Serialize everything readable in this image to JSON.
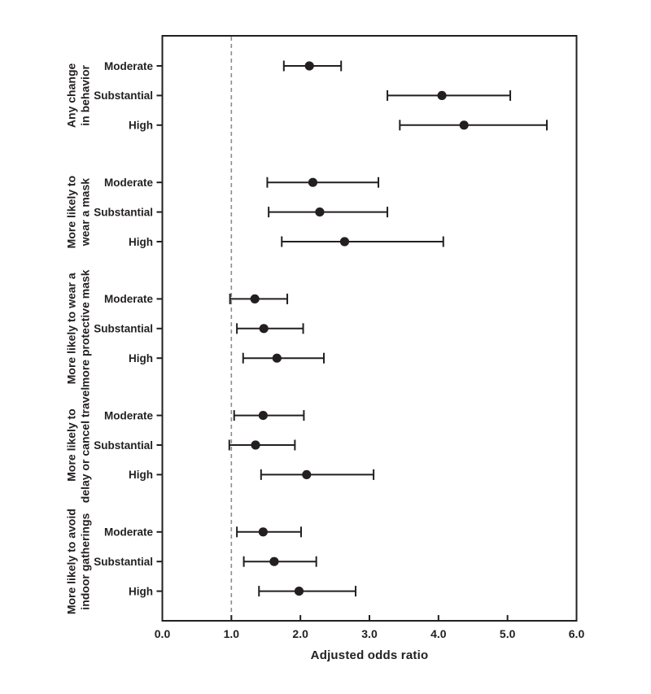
{
  "chart_data": {
    "type": "scatter",
    "subtype": "forest-plot-dot-with-ci",
    "title": "",
    "xlabel": "Adjusted odds ratio",
    "ylabel": "",
    "xlim": [
      0.0,
      6.0
    ],
    "xticks": [
      0,
      1,
      2,
      3,
      4,
      5,
      6
    ],
    "xtick_labels": [
      "0.0",
      "1.0",
      "2.0",
      "3.0",
      "4.0",
      "5.0",
      "6.0"
    ],
    "reference_line_x": 1.0,
    "grid": "off",
    "legend": "none",
    "groups": [
      {
        "label_lines": [
          "Any change",
          "in behavior"
        ],
        "rows": [
          {
            "level": "Moderate",
            "or": 2.13,
            "ci_low": 1.76,
            "ci_high": 2.59
          },
          {
            "level": "Substantial",
            "or": 4.05,
            "ci_low": 3.26,
            "ci_high": 5.04
          },
          {
            "level": "High",
            "or": 4.37,
            "ci_low": 3.44,
            "ci_high": 5.57
          }
        ]
      },
      {
        "label_lines": [
          "More likely to",
          "wear a mask"
        ],
        "rows": [
          {
            "level": "Moderate",
            "or": 2.18,
            "ci_low": 1.52,
            "ci_high": 3.13
          },
          {
            "level": "Substantial",
            "or": 2.28,
            "ci_low": 1.54,
            "ci_high": 3.26
          },
          {
            "level": "High",
            "or": 2.64,
            "ci_low": 1.73,
            "ci_high": 4.07
          }
        ]
      },
      {
        "label_lines": [
          "More likely to wear a",
          "more protective mask"
        ],
        "rows": [
          {
            "level": "Moderate",
            "or": 1.34,
            "ci_low": 0.98,
            "ci_high": 1.81
          },
          {
            "level": "Substantial",
            "or": 1.47,
            "ci_low": 1.08,
            "ci_high": 2.04
          },
          {
            "level": "High",
            "or": 1.66,
            "ci_low": 1.17,
            "ci_high": 2.34
          }
        ]
      },
      {
        "label_lines": [
          "More likely to",
          "delay or cancel travel"
        ],
        "rows": [
          {
            "level": "Moderate",
            "or": 1.46,
            "ci_low": 1.04,
            "ci_high": 2.05
          },
          {
            "level": "Substantial",
            "or": 1.35,
            "ci_low": 0.97,
            "ci_high": 1.92
          },
          {
            "level": "High",
            "or": 2.09,
            "ci_low": 1.43,
            "ci_high": 3.06
          }
        ]
      },
      {
        "label_lines": [
          "More likely to avoid",
          "indoor gatherings"
        ],
        "rows": [
          {
            "level": "Moderate",
            "or": 1.46,
            "ci_low": 1.08,
            "ci_high": 2.01
          },
          {
            "level": "Substantial",
            "or": 1.62,
            "ci_low": 1.18,
            "ci_high": 2.23
          },
          {
            "level": "High",
            "or": 1.98,
            "ci_low": 1.4,
            "ci_high": 2.8
          }
        ]
      }
    ],
    "colors": {
      "marker": "#231f20",
      "ci_line": "#231f20",
      "axis": "#231f20",
      "text": "#231f20",
      "reference_line": "#8c8c8c",
      "background": "#ffffff"
    }
  }
}
